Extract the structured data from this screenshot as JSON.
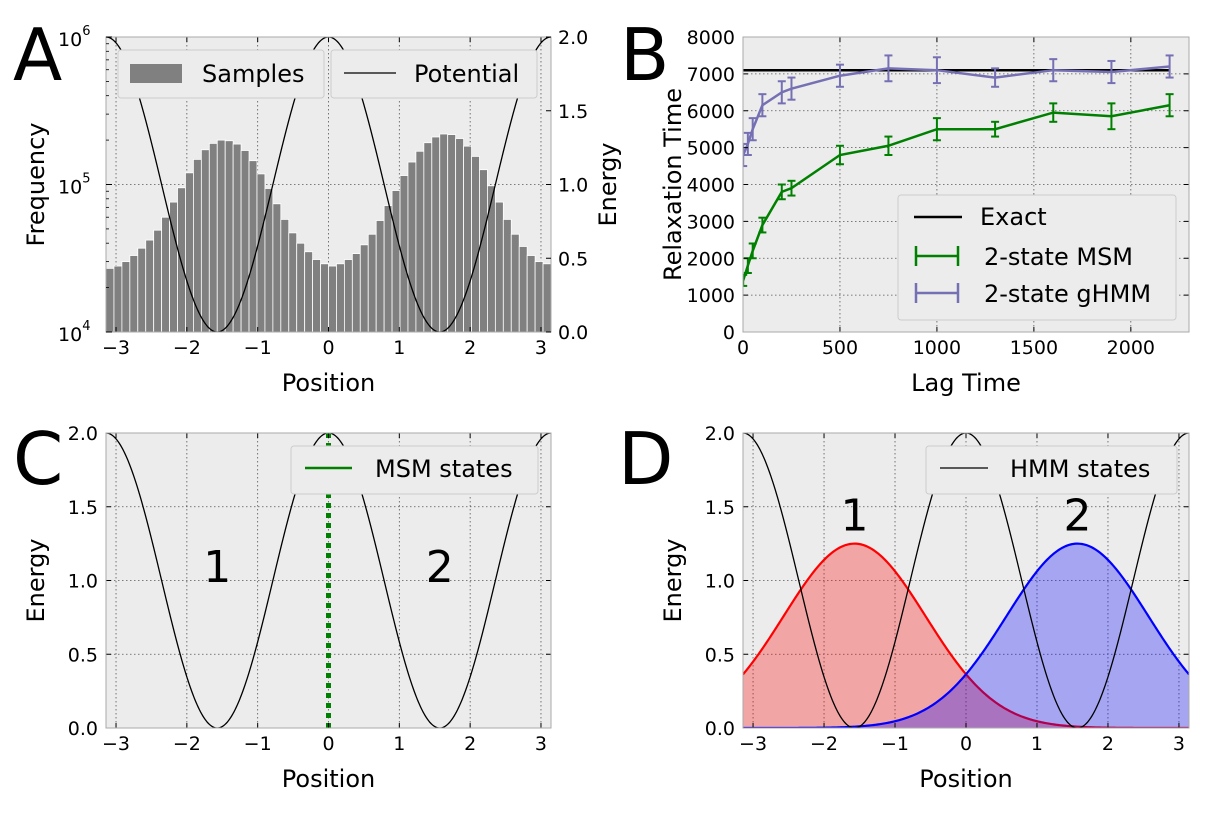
{
  "chart_data": [
    {
      "panel": "A",
      "type": "bar",
      "xlabel": "Position",
      "ylabel": "Frequency",
      "ylabel_right": "Energy",
      "xlim": [
        -3.14159,
        3.14159
      ],
      "ylim": [
        10000,
        1000000
      ],
      "yscale": "log",
      "ylim_right": [
        0.0,
        2.0
      ],
      "x_ticks": [
        -3,
        -2,
        -1,
        0,
        1,
        2,
        3
      ],
      "x_tick_labels": [
        "−3",
        "−2",
        "−1",
        "0",
        "1",
        "2",
        "3"
      ],
      "y_ticks": [
        10000,
        100000,
        1000000
      ],
      "y_tick_labels": [
        {
          "base": "10",
          "exp": "4"
        },
        {
          "base": "10",
          "exp": "5"
        },
        {
          "base": "10",
          "exp": "6"
        }
      ],
      "y_right_ticks": [
        0.0,
        0.5,
        1.0,
        1.5,
        2.0
      ],
      "y_right_tick_labels": [
        "0.0",
        "0.5",
        "1.0",
        "1.5",
        "2.0"
      ],
      "legend": [
        "Samples",
        "Potential"
      ],
      "series": [
        {
          "name": "Samples",
          "kind": "histogram",
          "bin_range": [
            -3.14159,
            3.14159
          ],
          "values": [
            27000,
            28000,
            30000,
            33000,
            37000,
            42000,
            49000,
            60000,
            76000,
            95000,
            120000,
            148000,
            172000,
            190000,
            200000,
            198000,
            188000,
            170000,
            145000,
            118000,
            94000,
            74000,
            58000,
            47000,
            40000,
            35000,
            31000,
            29000,
            28000,
            29000,
            31000,
            34000,
            39000,
            46000,
            57000,
            72000,
            91000,
            115000,
            142000,
            168000,
            192000,
            210000,
            220000,
            218000,
            205000,
            182000,
            155000,
            126000,
            98000,
            76000,
            58000,
            46000,
            38000,
            33000,
            30000,
            29000
          ],
          "color": "#808080"
        },
        {
          "name": "Potential",
          "kind": "curve",
          "formula": "1 + cos(2x)",
          "color": "#000000"
        }
      ]
    },
    {
      "panel": "B",
      "type": "line",
      "xlabel": "Lag Time",
      "ylabel": "Relaxation Time",
      "xlim": [
        0,
        2300
      ],
      "ylim": [
        0,
        8000
      ],
      "x_ticks": [
        0,
        500,
        1000,
        1500,
        2000
      ],
      "x_tick_labels": [
        "0",
        "500",
        "1000",
        "1500",
        "2000"
      ],
      "y_ticks": [
        0,
        1000,
        2000,
        3000,
        4000,
        5000,
        6000,
        7000,
        8000
      ],
      "y_tick_labels": [
        "0",
        "1000",
        "2000",
        "3000",
        "4000",
        "5000",
        "6000",
        "7000",
        "8000"
      ],
      "legend": [
        "Exact",
        "2-state MSM",
        "2-state gHMM"
      ],
      "series": [
        {
          "name": "Exact",
          "kind": "hline",
          "y": 7100,
          "x_range": [
            0,
            2200
          ],
          "color": "#000000"
        },
        {
          "name": "2-state MSM",
          "color": "#008000",
          "x": [
            1,
            25,
            50,
            100,
            200,
            250,
            500,
            750,
            1000,
            1300,
            1600,
            1900,
            2200
          ],
          "y": [
            1400,
            1800,
            2200,
            2900,
            3800,
            3900,
            4800,
            5050,
            5500,
            5500,
            5950,
            5850,
            6150
          ],
          "err": [
            150,
            200,
            200,
            200,
            200,
            200,
            250,
            250,
            300,
            200,
            250,
            350,
            300
          ]
        },
        {
          "name": "2-state gHMM",
          "color": "#7570b3",
          "x": [
            1,
            25,
            50,
            100,
            200,
            250,
            500,
            750,
            1000,
            1300,
            1600,
            1900,
            2200
          ],
          "y": [
            4800,
            5100,
            5500,
            6150,
            6500,
            6600,
            6950,
            7150,
            7100,
            6900,
            7100,
            7050,
            7200
          ],
          "err": [
            300,
            300,
            300,
            300,
            300,
            300,
            300,
            350,
            350,
            250,
            300,
            300,
            300
          ]
        }
      ]
    },
    {
      "panel": "C",
      "type": "line",
      "xlabel": "Position",
      "ylabel": "Energy",
      "xlim": [
        -3.14159,
        3.14159
      ],
      "ylim": [
        0.0,
        2.0
      ],
      "x_ticks": [
        -3,
        -2,
        -1,
        0,
        1,
        2,
        3
      ],
      "x_tick_labels": [
        "−3",
        "−2",
        "−1",
        "0",
        "1",
        "2",
        "3"
      ],
      "y_ticks": [
        0.0,
        0.5,
        1.0,
        1.5,
        2.0
      ],
      "y_tick_labels": [
        "0.0",
        "0.5",
        "1.0",
        "1.5",
        "2.0"
      ],
      "legend": [
        "MSM states"
      ],
      "series": [
        {
          "name": "Potential",
          "kind": "curve",
          "formula": "1 + cos(2x)",
          "color": "#000000"
        },
        {
          "name": "MSM states",
          "kind": "vline",
          "x": 0,
          "color": "#008000",
          "style": "dotted"
        }
      ],
      "annotations": [
        {
          "text": "1",
          "x": -1.57,
          "y": 1.07,
          "color": "#008000"
        },
        {
          "text": "2",
          "x": 1.57,
          "y": 1.07,
          "color": "#008000"
        }
      ]
    },
    {
      "panel": "D",
      "type": "area",
      "xlabel": "Position",
      "ylabel": "Energy",
      "xlim": [
        -3.14159,
        3.14159
      ],
      "ylim": [
        0.0,
        2.0
      ],
      "x_ticks": [
        -3,
        -2,
        -1,
        0,
        1,
        2,
        3
      ],
      "x_tick_labels": [
        "−3",
        "−2",
        "−1",
        "0",
        "1",
        "2",
        "3"
      ],
      "y_ticks": [
        0.0,
        0.5,
        1.0,
        1.5,
        2.0
      ],
      "y_tick_labels": [
        "0.0",
        "0.5",
        "1.0",
        "1.5",
        "2.0"
      ],
      "legend": [
        "HMM states"
      ],
      "series": [
        {
          "name": "HMM states",
          "kind": "curve",
          "formula": "1 + cos(2x)",
          "color": "#000000"
        },
        {
          "name": "State 1",
          "kind": "gaussian",
          "mean": -1.57,
          "sigma": 1.0,
          "peak": 1.25,
          "color": "#ff0000",
          "fill": "#f0a8a8"
        },
        {
          "name": "State 2",
          "kind": "gaussian",
          "mean": 1.57,
          "sigma": 1.0,
          "peak": 1.25,
          "color": "#0000ff",
          "fill": "#a6a6f0"
        }
      ],
      "annotations": [
        {
          "text": "1",
          "x": -1.57,
          "y": 1.42,
          "color": "#ff0000"
        },
        {
          "text": "2",
          "x": 1.57,
          "y": 1.42,
          "color": "#0000ff"
        }
      ]
    }
  ],
  "panel_labels": [
    "A",
    "B",
    "C",
    "D"
  ]
}
